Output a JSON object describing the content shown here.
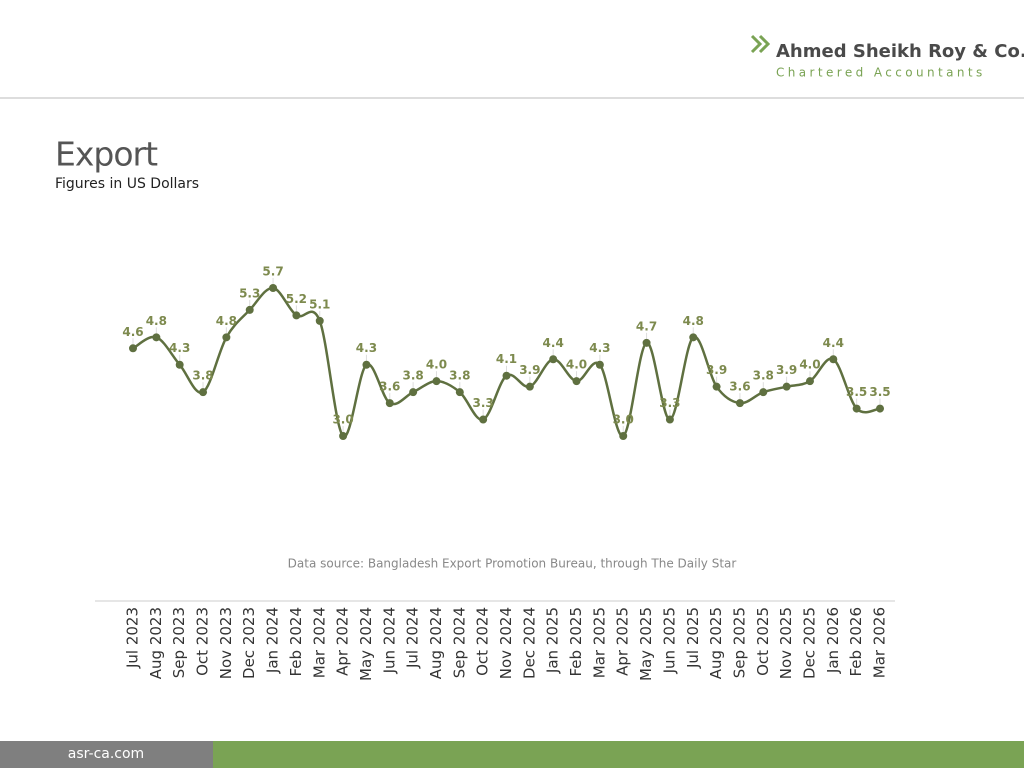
{
  "header": {
    "company": "Ahmed Sheikh Roy & Co.",
    "tagline": "Chartered Accountants"
  },
  "footer": {
    "website": "asr-ca.com"
  },
  "chart_data": {
    "type": "line",
    "title": "Export",
    "subtitle": "Figures in US Dollars",
    "source": "Data source: Bangladesh Export Promotion Bureau, through The Daily Star",
    "categories": [
      "Jul 2023",
      "Aug 2023",
      "Sep 2023",
      "Oct 2023",
      "Nov 2023",
      "Dec 2023",
      "Jan 2024",
      "Feb 2024",
      "Mar 2024",
      "Apr 2024",
      "May 2024",
      "Jun 2024",
      "Jul 2024",
      "Aug 2024",
      "Sep 2024",
      "Oct 2024",
      "Nov 2024",
      "Dec 2024",
      "Jan 2025",
      "Feb 2025",
      "Mar 2025",
      "Apr 2025",
      "May 2025",
      "Jun 2025",
      "Jul 2025",
      "Aug 2025",
      "Sep 2025",
      "Oct 2025",
      "Nov 2025",
      "Dec 2025",
      "Jan 2026",
      "Feb 2026",
      "Mar 2026"
    ],
    "values": [
      4.6,
      4.8,
      4.3,
      3.8,
      4.8,
      5.3,
      5.7,
      5.2,
      5.1,
      3.0,
      4.3,
      3.6,
      3.8,
      4.0,
      3.8,
      3.3,
      4.1,
      3.9,
      4.4,
      4.0,
      4.3,
      3.0,
      4.7,
      3.3,
      4.8,
      3.9,
      3.6,
      3.8,
      3.9,
      4.0,
      4.4,
      3.5,
      3.5
    ],
    "value_labels": [
      "4.6",
      "4.8",
      "4.3",
      "3.8",
      "4.8",
      "5.3",
      "5.7",
      "5.2",
      "5.1",
      "3.0",
      "4.3",
      "3.6",
      "3.8",
      "4.0",
      "3.8",
      "3.3",
      "4.1",
      "3.9",
      "4.4",
      "4.0",
      "4.3",
      "3.0",
      "4.7",
      "3.3",
      "4.8",
      "3.9",
      "3.6",
      "3.8",
      "3.9",
      "4.0",
      "4.4",
      "3.5",
      "3.5"
    ],
    "color": "#5f7040"
  }
}
